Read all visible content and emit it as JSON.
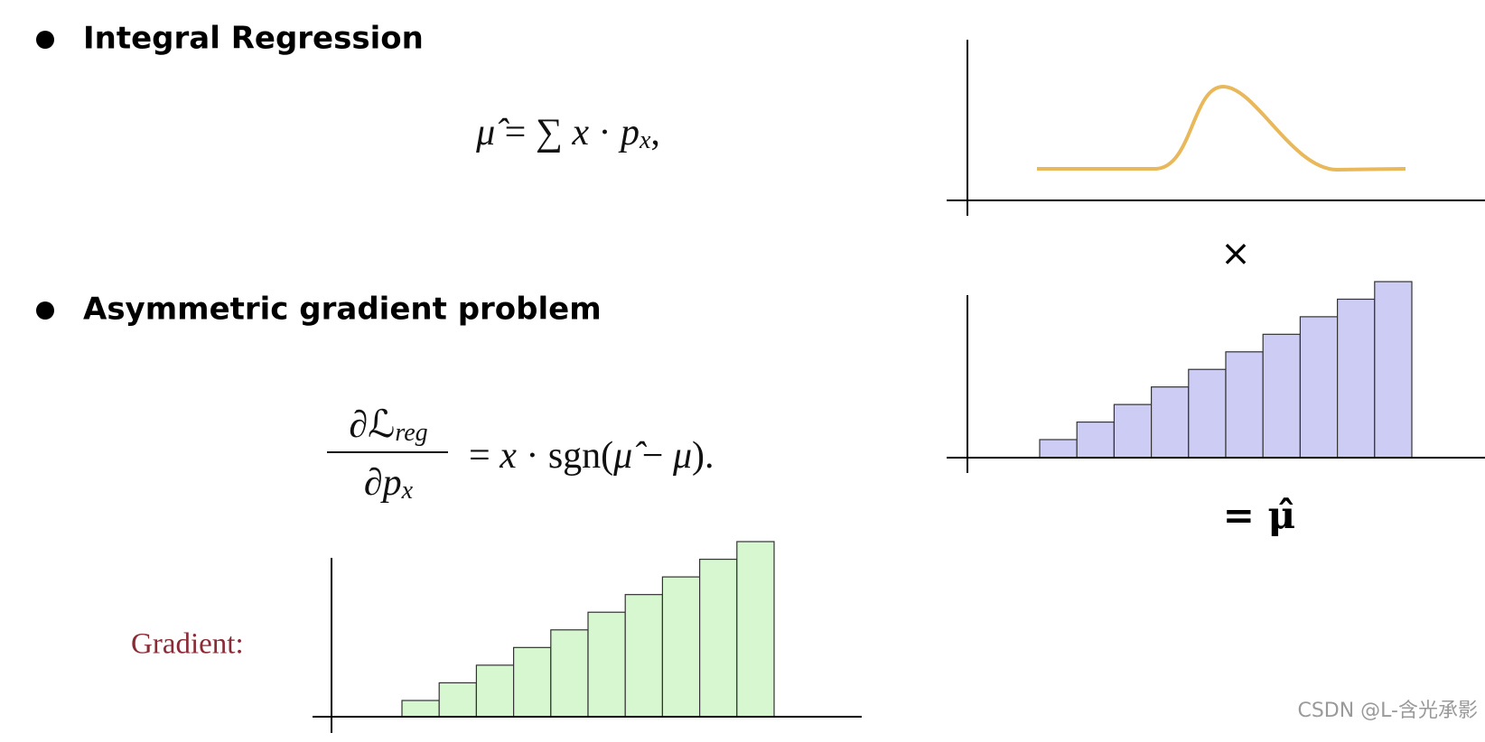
{
  "sections": [
    {
      "heading": "Integral Regression",
      "formula": [
        "μ̂",
        " = ∑ ",
        "x",
        " · ",
        "p",
        "x",
        ","
      ]
    },
    {
      "heading": "Asymmetric gradient problem",
      "numerator": [
        "∂ℒ",
        "reg"
      ],
      "denominator": [
        "∂p",
        "x"
      ],
      "rhs": [
        "= ",
        "x",
        " · sgn(",
        "μ̂",
        " − ",
        "μ",
        ")."
      ]
    }
  ],
  "gradient_label": "Gradient:",
  "times_symbol": "×",
  "result": "= μ̂",
  "watermark": "CSDN @L-含光承影"
}
